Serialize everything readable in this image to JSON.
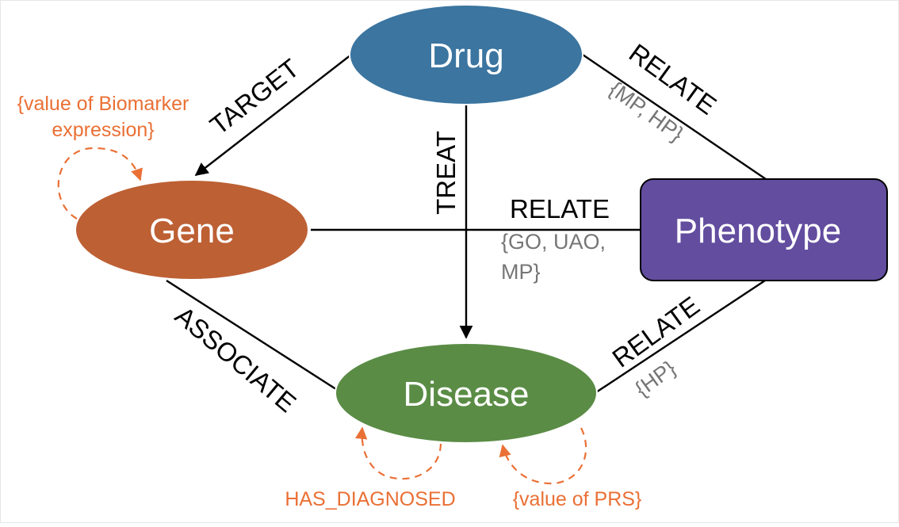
{
  "nodes": {
    "drug": {
      "label": "Drug",
      "color": "#3b75a0"
    },
    "gene": {
      "label": "Gene",
      "color": "#bd6034"
    },
    "phenotype": {
      "label": "Phenotype",
      "color": "#624d9f"
    },
    "disease": {
      "label": "Disease",
      "color": "#5a8c45"
    }
  },
  "edges": {
    "target": {
      "label": "TARGET"
    },
    "treat": {
      "label": "TREAT"
    },
    "drug_relate": {
      "label": "RELATE",
      "annotation": "{MP, HP}"
    },
    "gene_relate": {
      "label": "RELATE",
      "annotation_line1": "{GO, UAO,",
      "annotation_line2": "MP}"
    },
    "associate": {
      "label": "ASSOCIATE"
    },
    "disease_relate": {
      "label": "RELATE",
      "annotation": "{HP}"
    }
  },
  "self_loops": {
    "gene": {
      "line1": "{value of Biomarker",
      "line2": "expression}"
    },
    "disease_diagnosed": {
      "label": "HAS_DIAGNOSED"
    },
    "disease_prs": {
      "label": "{value of PRS}"
    }
  },
  "colors": {
    "edge": "#000000",
    "annotation_gray": "#767676",
    "annotation_orange": "#ea7035"
  }
}
